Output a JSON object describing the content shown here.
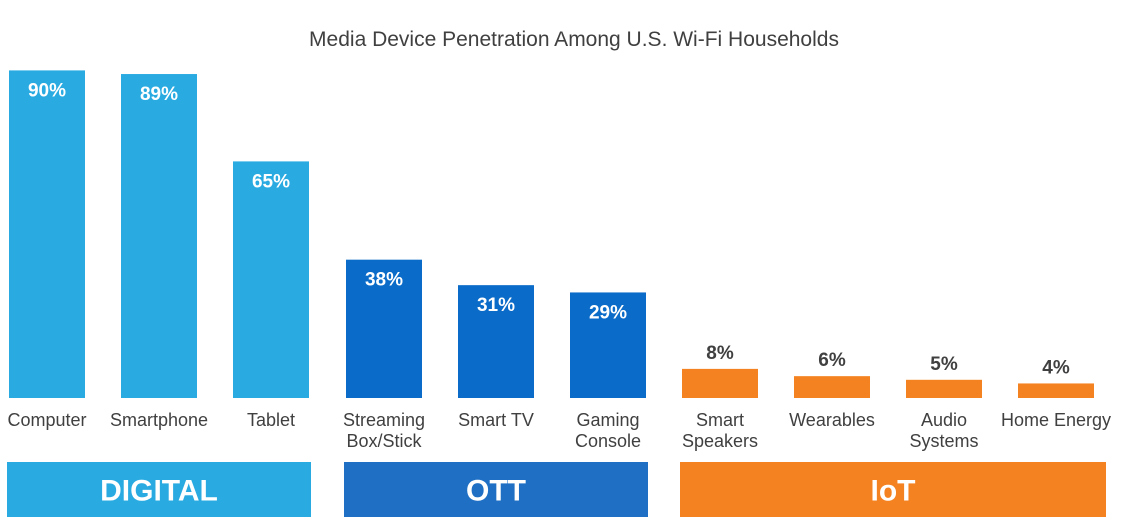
{
  "chart_data": {
    "type": "bar",
    "title": "Media Device Penetration Among U.S. Wi-Fi Households",
    "xlabel": "",
    "ylabel": "",
    "ylim": [
      0,
      100
    ],
    "grid": false,
    "value_suffix": "%",
    "categories": [
      [
        "Computer"
      ],
      [
        "Smartphone"
      ],
      [
        "Tablet"
      ],
      [
        "Streaming",
        "Box/Stick"
      ],
      [
        "Smart TV"
      ],
      [
        "Gaming",
        "Console"
      ],
      [
        "Smart",
        "Speakers"
      ],
      [
        "Wearables"
      ],
      [
        "Audio",
        "Systems"
      ],
      [
        "Home Energy"
      ]
    ],
    "values": [
      90,
      89,
      65,
      38,
      31,
      29,
      8,
      6,
      5,
      4
    ],
    "groups": [
      {
        "name": "DIGITAL",
        "color": "#29ABE2",
        "category_indices": [
          0,
          1,
          2
        ]
      },
      {
        "name": "OTT",
        "color": "#0A6BC8",
        "category_indices": [
          3,
          4,
          5
        ]
      },
      {
        "name": "IoT",
        "color": "#F58220",
        "category_indices": [
          6,
          7,
          8,
          9
        ]
      }
    ],
    "group_banner_colors": [
      "#29ABE2",
      "#1F6FC4",
      "#F58220"
    ]
  }
}
